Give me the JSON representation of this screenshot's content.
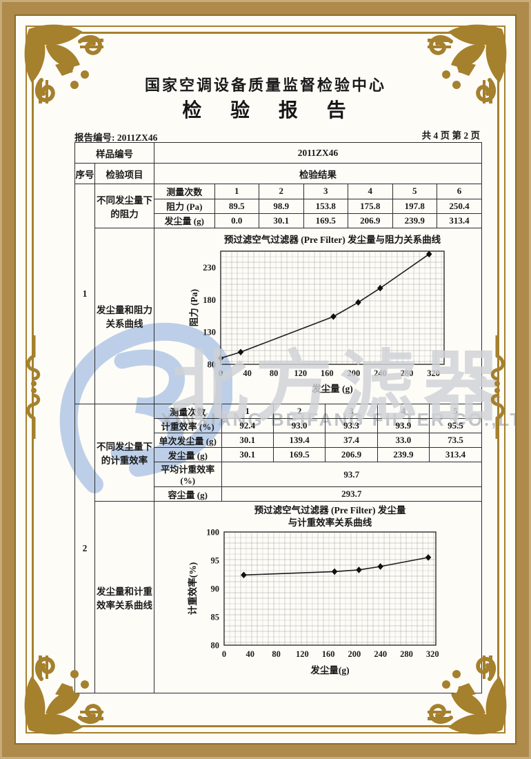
{
  "header": {
    "center_name": "国家空调设备质量监督检验中心",
    "report_title": "检 验 报 告",
    "report_no": "报告编号: 2011ZX46",
    "page_info": "共 4 页 第 2 页"
  },
  "table": {
    "sample_no_label": "样品编号",
    "sample_no_value": "2011ZX46",
    "col_seq": "序号",
    "col_item": "检验项目",
    "col_result": "检验结果",
    "row1": {
      "seq": "1",
      "item_a": "不同发尘量下的阻力",
      "item_b": "发尘量和阻力关系曲线"
    },
    "row2": {
      "seq": "2",
      "item_a": "不同发尘量下的计重效率",
      "item_b": "发尘量和计重效率关系曲线"
    }
  },
  "t1": {
    "header_label": "测量次数",
    "cols": [
      "1",
      "2",
      "3",
      "4",
      "5",
      "6"
    ],
    "rows": [
      {
        "label": "阻力 (Pa)",
        "values": [
          "89.5",
          "98.9",
          "153.8",
          "175.8",
          "197.8",
          "250.4"
        ]
      },
      {
        "label": "发尘量 (g)",
        "values": [
          "0.0",
          "30.1",
          "169.5",
          "206.9",
          "239.9",
          "313.4"
        ]
      }
    ]
  },
  "t2": {
    "header_label": "测量次数",
    "cols": [
      "1",
      "2",
      "3",
      "4",
      "5"
    ],
    "rows": [
      {
        "label": "计重效率 (%)",
        "values": [
          "92.4",
          "93.0",
          "93.3",
          "93.9",
          "95.5"
        ]
      },
      {
        "label": "单次发尘量 (g)",
        "values": [
          "30.1",
          "139.4",
          "37.4",
          "33.0",
          "73.5"
        ]
      },
      {
        "label": "发尘量 (g)",
        "values": [
          "30.1",
          "169.5",
          "206.9",
          "239.9",
          "313.4"
        ]
      }
    ],
    "avg_label": "平均计重效率 (%)",
    "avg_value": "93.7",
    "capacity_label": "容尘量 (g)",
    "capacity_value": "293.7"
  },
  "chart_data": [
    {
      "type": "line",
      "title": "预过滤空气过滤器 (Pre Filter) 发尘量与阻力关系曲线",
      "title_lines": [
        "预过滤空气过滤器 (Pre Filter) 发尘量与阻力关系曲线"
      ],
      "xlabel": "发尘量 (g)",
      "ylabel": "阻力 (Pa)",
      "x": [
        0,
        30.1,
        169.5,
        206.9,
        239.9,
        313.4
      ],
      "y": [
        89.5,
        98.9,
        153.8,
        175.8,
        197.8,
        250.4
      ],
      "xlim": [
        0,
        336
      ],
      "ylim": [
        80,
        255
      ],
      "xticks": [
        0,
        40,
        80,
        120,
        160,
        200,
        240,
        280,
        320
      ],
      "yticks": [
        80,
        130,
        180,
        230
      ],
      "grid": true,
      "legend": "none",
      "marker": "diamond"
    },
    {
      "type": "line",
      "title": "预过滤空气过滤器 (Pre Filter) 发尘量与计重效率关系曲线",
      "title_lines": [
        "预过滤空气过滤器 (Pre Filter) 发尘量",
        "与计重效率关系曲线"
      ],
      "xlabel": "发尘量(g)",
      "ylabel": "计重效率(%)",
      "x": [
        30.1,
        169.5,
        206.9,
        239.9,
        313.4
      ],
      "y": [
        92.4,
        93.0,
        93.3,
        93.9,
        95.5
      ],
      "xlim": [
        0,
        325
      ],
      "ylim": [
        80,
        100
      ],
      "xticks": [
        0,
        40,
        80,
        120,
        160,
        200,
        240,
        280,
        320
      ],
      "yticks": [
        80,
        85,
        90,
        95,
        100
      ],
      "grid": true,
      "legend": "none",
      "marker": "diamond"
    }
  ],
  "watermark": {
    "logo": "beifang-b-logo",
    "cn_text": "北方滤器",
    "en_text": "XINXIANG BEIFANG FILTER CO.,LTD."
  },
  "colors": {
    "frame_gold": "#a5802d",
    "frame_tan": "#ae8a4b",
    "ink": "#222222",
    "watermark_blue": "#bdcfe8",
    "watermark_gray": "#ced1d6"
  }
}
